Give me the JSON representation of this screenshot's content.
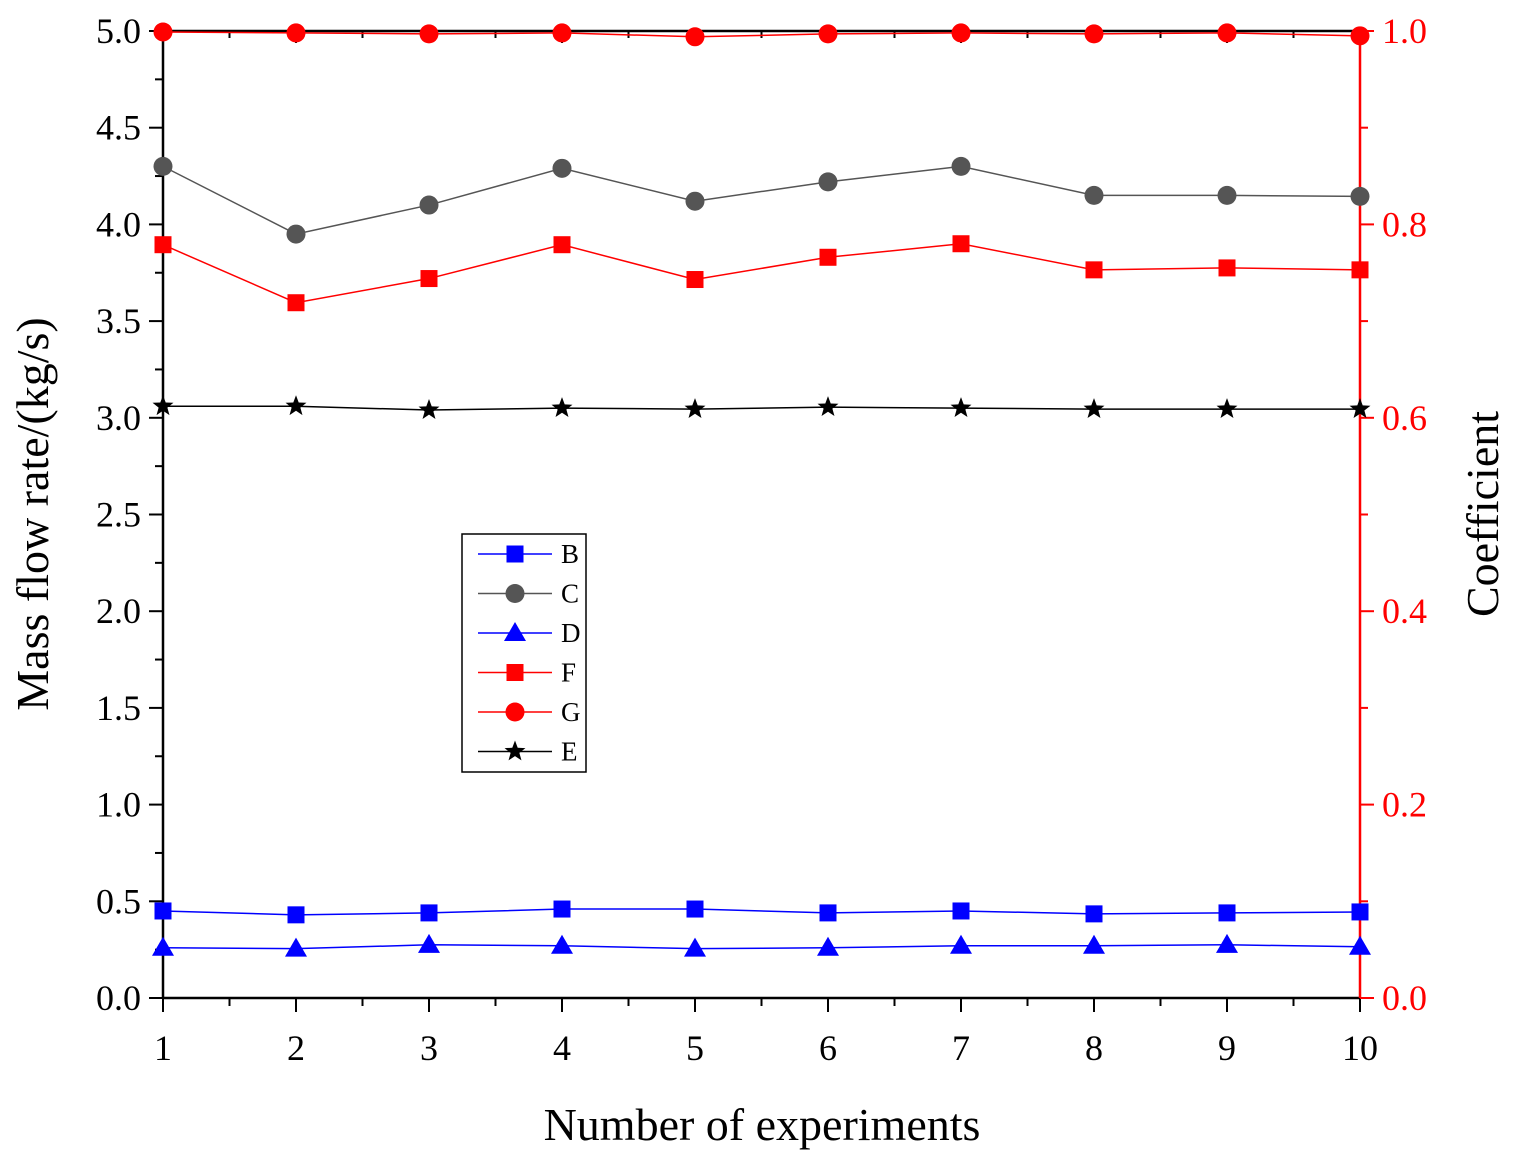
{
  "chart_data": {
    "type": "line",
    "title": "",
    "xlabel": "Number of experiments",
    "ylabel": "Mass flow rate/(kg/s)",
    "y2label": "Coefficient",
    "x": [
      1,
      2,
      3,
      4,
      5,
      6,
      7,
      8,
      9,
      10
    ],
    "xlim": [
      1,
      10
    ],
    "ylim": [
      0,
      5
    ],
    "y2lim": [
      0,
      1
    ],
    "xticks": [
      "1",
      "2",
      "3",
      "4",
      "5",
      "6",
      "7",
      "8",
      "9",
      "10"
    ],
    "yticks": [
      "0.0",
      "0.5",
      "1.0",
      "1.5",
      "2.0",
      "2.5",
      "3.0",
      "3.5",
      "4.0",
      "4.5",
      "5.0"
    ],
    "y2ticks": [
      "0.0",
      "0.2",
      "0.4",
      "0.6",
      "0.8",
      "1.0"
    ],
    "grid": false,
    "legend_position": "center-left",
    "series": [
      {
        "name": "B",
        "axis": "left",
        "marker": "square",
        "color": "#0000ff",
        "values": [
          0.45,
          0.43,
          0.44,
          0.46,
          0.46,
          0.44,
          0.45,
          0.435,
          0.44,
          0.445
        ]
      },
      {
        "name": "C",
        "axis": "left",
        "marker": "circle",
        "color": "#555555",
        "values": [
          4.3,
          3.95,
          4.1,
          4.29,
          4.12,
          4.22,
          4.3,
          4.15,
          4.15,
          4.145
        ]
      },
      {
        "name": "D",
        "axis": "left",
        "marker": "triangle",
        "color": "#0000ff",
        "values": [
          0.26,
          0.255,
          0.275,
          0.27,
          0.255,
          0.26,
          0.27,
          0.27,
          0.275,
          0.265
        ]
      },
      {
        "name": "F",
        "axis": "right",
        "marker": "square",
        "color": "#ff0000",
        "values": [
          0.779,
          0.719,
          0.744,
          0.779,
          0.743,
          0.766,
          0.78,
          0.753,
          0.755,
          0.753
        ]
      },
      {
        "name": "G",
        "axis": "right",
        "marker": "circle",
        "color": "#ff0000",
        "values": [
          0.999,
          0.998,
          0.997,
          0.998,
          0.994,
          0.997,
          0.998,
          0.997,
          0.998,
          0.995
        ]
      },
      {
        "name": "E",
        "axis": "left",
        "marker": "star",
        "color": "#000000",
        "values": [
          3.06,
          3.06,
          3.04,
          3.05,
          3.045,
          3.055,
          3.05,
          3.045,
          3.045,
          3.045
        ]
      }
    ]
  }
}
